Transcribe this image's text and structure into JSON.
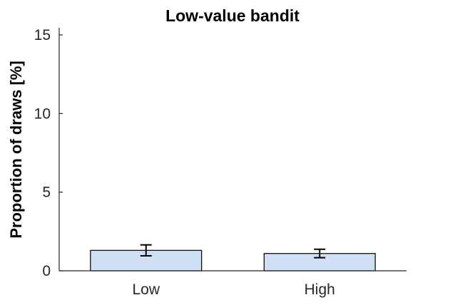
{
  "chart_data": {
    "type": "bar",
    "title": "Low-value bandit",
    "xlabel": "",
    "ylabel": "Proportion of draws [%]",
    "categories": [
      "Low",
      "High"
    ],
    "values": [
      1.3,
      1.1
    ],
    "error": [
      0.35,
      0.27
    ],
    "ylim": [
      0,
      15
    ],
    "yticks": [
      0,
      5,
      10,
      15
    ],
    "ytick_labels": [
      "0",
      "5",
      "10",
      "15"
    ],
    "grid": false,
    "legend": "none",
    "colors": {
      "bar_fill": "#cfe0f5",
      "bar_edge": "#000000",
      "axis": "#262626",
      "error_bar": "#000000"
    }
  }
}
